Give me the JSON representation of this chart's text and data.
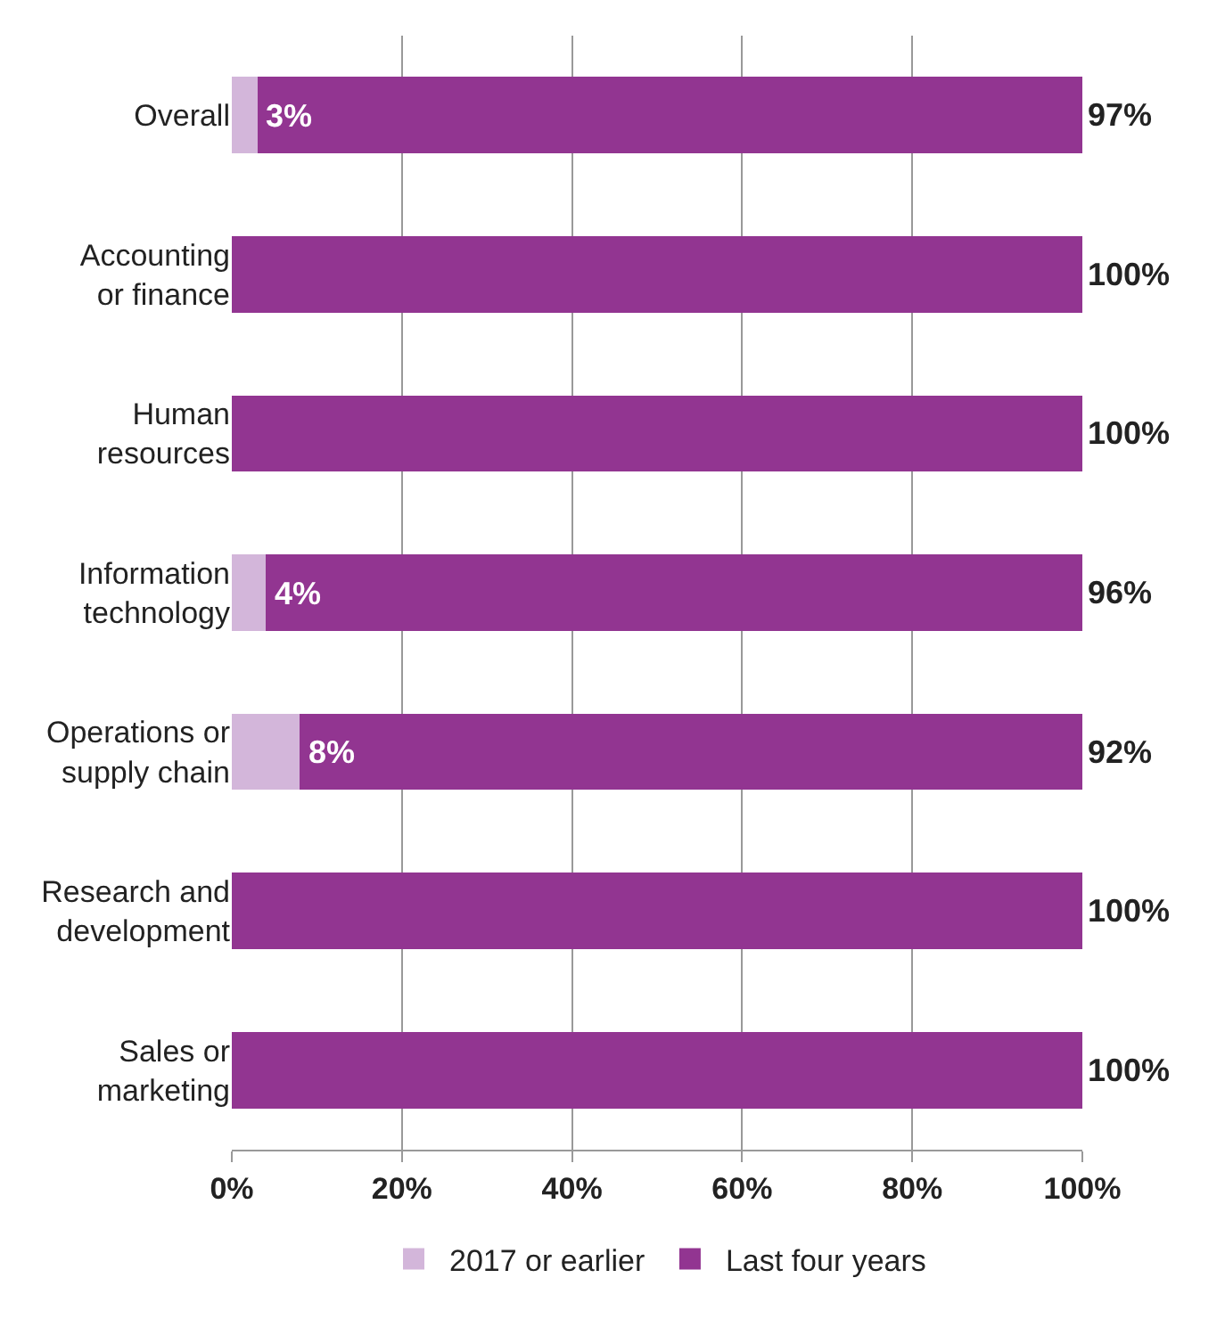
{
  "chart_data": {
    "type": "bar",
    "orientation": "horizontal",
    "stacked": true,
    "categories": [
      "Overall",
      "Accounting\nor finance",
      "Human\nresources",
      "Information\ntechnology",
      "Operations or\nsupply chain",
      "Research and\ndevelopment",
      "Sales or\nmarketing"
    ],
    "series": [
      {
        "name": "2017 or earlier",
        "color": "#d3b6da",
        "values": [
          3,
          0,
          0,
          4,
          8,
          0,
          0
        ],
        "value_labels": [
          "3%",
          null,
          null,
          "4%",
          "8%",
          null,
          null
        ]
      },
      {
        "name": "Last four years",
        "color": "#923591",
        "values": [
          97,
          100,
          100,
          96,
          92,
          100,
          100
        ],
        "value_labels": [
          "97%",
          "100%",
          "100%",
          "96%",
          "92%",
          "100%",
          "100%"
        ]
      }
    ],
    "xlim": [
      0,
      100
    ],
    "xticks": [
      {
        "value": 0,
        "label": "0%"
      },
      {
        "value": 20,
        "label": "20%"
      },
      {
        "value": 40,
        "label": "40%"
      },
      {
        "value": 60,
        "label": "60%"
      },
      {
        "value": 80,
        "label": "80%"
      },
      {
        "value": 100,
        "label": "100%"
      }
    ],
    "grid": "x",
    "legend": "bottom"
  }
}
